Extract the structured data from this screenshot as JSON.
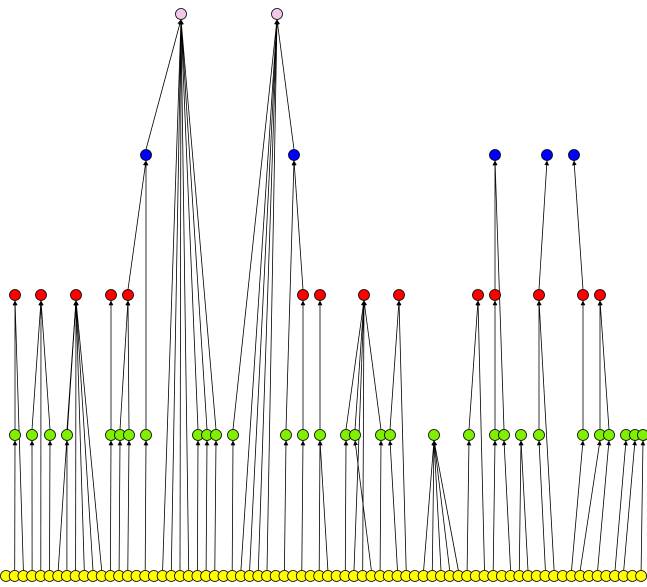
{
  "diagram": {
    "type": "layered-tree",
    "arrow_direction": "child-to-parent",
    "colors": {
      "edge": "#000000",
      "level_0": "#f4c8e8",
      "level_1": "#0000ff",
      "level_2": "#ff0000",
      "level_3": "#7ff000",
      "level_4": "#ffff00"
    },
    "levels": [
      {
        "level": 0,
        "node_count": 2
      },
      {
        "level": 1,
        "node_count": 5
      },
      {
        "level": 2,
        "node_count": 20
      },
      {
        "level": 3,
        "node_count": 40
      },
      {
        "level": 4,
        "node_count": 74
      }
    ]
  }
}
